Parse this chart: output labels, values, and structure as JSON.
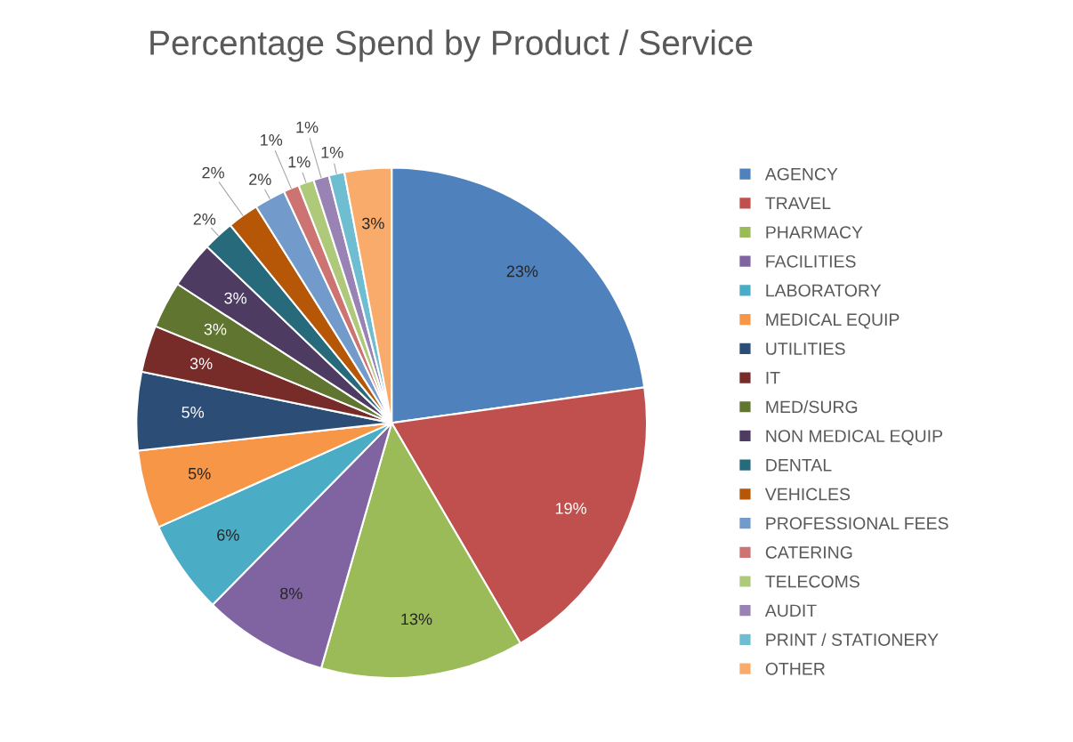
{
  "chart_data": {
    "type": "pie",
    "title": "Percentage Spend by Product / Service",
    "categories": [
      "AGENCY",
      "TRAVEL",
      "PHARMACY",
      "FACILITIES",
      "LABORATORY",
      "MEDICAL EQUIP",
      "UTILITIES",
      "IT",
      "MED/SURG",
      "NON MEDICAL EQUIP",
      "DENTAL",
      "VEHICLES",
      "PROFESSIONAL FEES",
      "CATERING",
      "TELECOMS",
      "AUDIT",
      "PRINT / STATIONERY",
      "OTHER"
    ],
    "values": [
      23,
      19,
      13,
      8,
      6,
      5,
      5,
      3,
      3,
      3,
      2,
      2,
      2,
      1,
      1,
      1,
      1,
      3
    ],
    "colors": [
      "#4f81bd",
      "#c0504d",
      "#9bbb59",
      "#8064a2",
      "#4bacc6",
      "#f79646",
      "#2c4d75",
      "#772c2a",
      "#5f7530",
      "#4d3b62",
      "#276a7c",
      "#b65708",
      "#729aca",
      "#cd7371",
      "#afc97a",
      "#9983b5",
      "#6fbdd1",
      "#f9ab6b"
    ],
    "value_labels": [
      "23%",
      "19%",
      "13%",
      "8%",
      "6%",
      "5%",
      "5%",
      "3%",
      "3%",
      "3%",
      "2%",
      "2%",
      "2%",
      "1%",
      "1%",
      "1%",
      "1%",
      "3%"
    ],
    "legend": "right"
  }
}
